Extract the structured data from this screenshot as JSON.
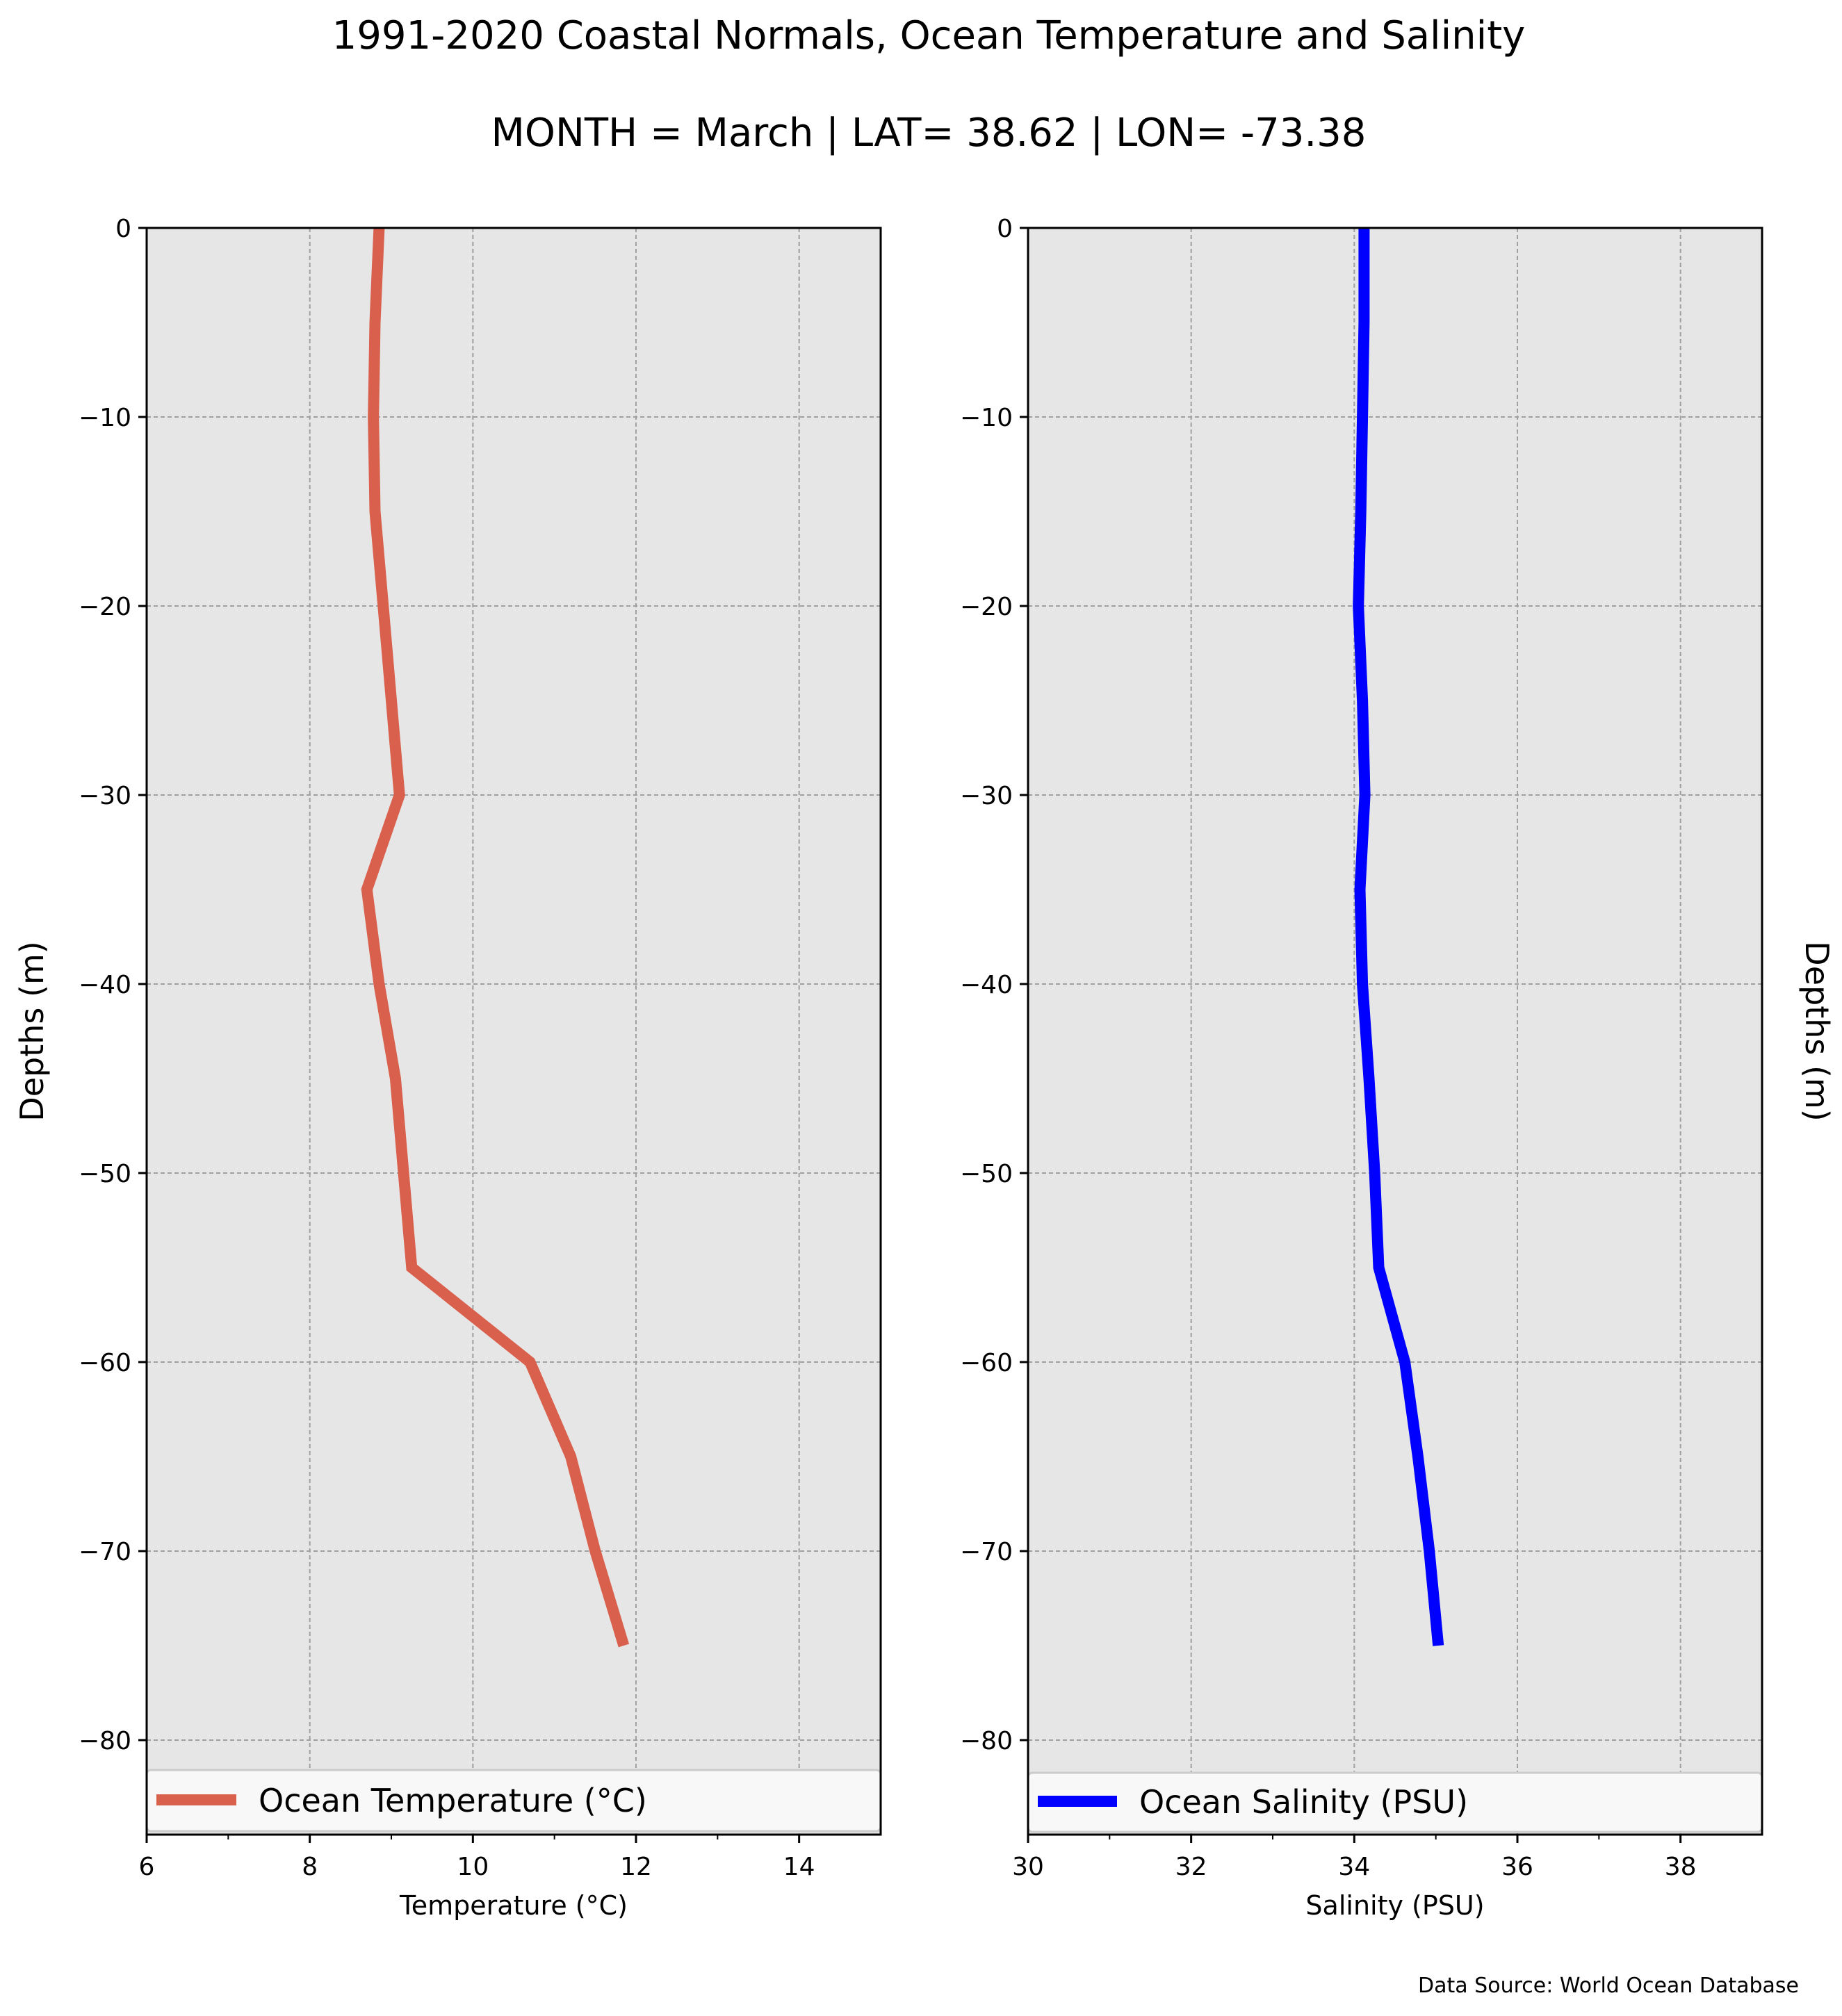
{
  "figure": {
    "title": "1991-2020 Coastal Normals, Ocean Temperature and Salinity",
    "subtitle": "MONTH = March | LAT= 38.62 | LON= -73.38",
    "source_note": "Data Source: World Ocean Database"
  },
  "style": {
    "plot_background": "#e6e6e6",
    "grid_color": "#a0a0a0",
    "temperature_color": "#d9604c",
    "salinity_color": "#0000ff"
  },
  "chart_data": [
    {
      "type": "line",
      "xlabel": "Temperature (°C)",
      "ylabel": "Depths (m)",
      "xlim": [
        6,
        15
      ],
      "ylim": [
        -85,
        0
      ],
      "xticks": [
        6,
        8,
        10,
        12,
        14
      ],
      "yticks": [
        0,
        -10,
        -20,
        -30,
        -40,
        -50,
        -60,
        -70,
        -80
      ],
      "x_tick_labels": [
        "6",
        "8",
        "10",
        "12",
        "14"
      ],
      "y_tick_labels": [
        "0",
        "−10",
        "−20",
        "−30",
        "−40",
        "−50",
        "−60",
        "−70",
        "−80"
      ],
      "grid": true,
      "legend_position": "bottom",
      "series": [
        {
          "name": "Ocean Temperature (°C)",
          "color": "#d9604c",
          "x": [
            8.85,
            8.8,
            8.78,
            8.8,
            8.9,
            9.0,
            9.1,
            8.7,
            8.85,
            9.05,
            9.15,
            9.25,
            10.7,
            11.2,
            11.5,
            11.85
          ],
          "y": [
            0,
            -5,
            -10,
            -15,
            -20,
            -25,
            -30,
            -35,
            -40,
            -45,
            -50,
            -55,
            -60,
            -65,
            -70,
            -75
          ]
        }
      ]
    },
    {
      "type": "line",
      "xlabel": "Salinity (PSU)",
      "ylabel": "Depths (m)",
      "xlim": [
        30,
        39
      ],
      "ylim": [
        -85,
        0
      ],
      "xticks": [
        30,
        32,
        34,
        36,
        38
      ],
      "yticks": [
        0,
        -10,
        -20,
        -30,
        -40,
        -50,
        -60,
        -70,
        -80
      ],
      "x_tick_labels": [
        "30",
        "32",
        "34",
        "36",
        "38"
      ],
      "y_tick_labels": [
        "0",
        "−10",
        "−20",
        "−30",
        "−40",
        "−50",
        "−60",
        "−70",
        "−80"
      ],
      "grid": true,
      "legend_position": "bottom",
      "series": [
        {
          "name": "Ocean Salinity (PSU)",
          "color": "#0000ff",
          "x": [
            34.12,
            34.12,
            34.1,
            34.08,
            34.05,
            34.1,
            34.13,
            34.07,
            34.1,
            34.18,
            34.25,
            34.3,
            34.62,
            34.78,
            34.92,
            35.03
          ],
          "y": [
            0,
            -5,
            -10,
            -15,
            -20,
            -25,
            -30,
            -35,
            -40,
            -45,
            -50,
            -55,
            -60,
            -65,
            -70,
            -75
          ]
        }
      ]
    }
  ]
}
